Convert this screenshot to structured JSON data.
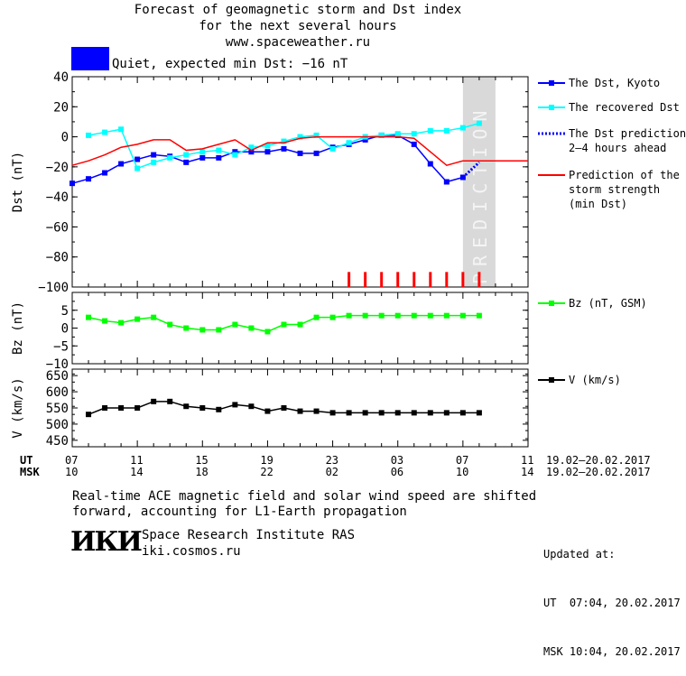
{
  "header": {
    "title_line1": "Forecast of geomagnetic storm and Dst index",
    "title_line2": "for the next several hours",
    "title_line3": "www.spaceweather.ru",
    "status_color": "#0000ff",
    "status_text": "Quiet, expected min Dst: −16 nT"
  },
  "time_axis": {
    "ut_label": "UT",
    "msk_label": "MSK",
    "ut_ticks": [
      "07",
      "11",
      "15",
      "19",
      "23",
      "03",
      "07",
      "11"
    ],
    "msk_ticks": [
      "10",
      "14",
      "18",
      "22",
      "02",
      "06",
      "10",
      "14"
    ],
    "ut_range": "19.02–20.02.2017",
    "msk_range": "19.02–20.02.2017"
  },
  "footer": {
    "note_line1": "Real-time ACE magnetic field and solar wind speed are shifted",
    "note_line2": "forward, accounting for L1-Earth propagation",
    "logo_text": "ИКИ",
    "institute": "Space Research Institute RAS",
    "website": "iki.cosmos.ru",
    "updated_label": "Updated at:",
    "updated_ut": "UT  07:04, 20.02.2017",
    "updated_msk": "MSK 10:04, 20.02.2017"
  },
  "chart_data": [
    {
      "type": "line",
      "id": "dst",
      "ylabel": "Dst (nT)",
      "ylim": [
        -100,
        40
      ],
      "yticks": [
        40,
        20,
        0,
        -20,
        -40,
        -60,
        -80,
        -100
      ],
      "xlim": [
        0,
        28
      ],
      "prediction_label": "PREDICTION",
      "prediction_start": 24,
      "series": [
        {
          "name": "The Dst, Kyoto",
          "color": "#0000ff",
          "x": [
            0,
            1,
            2,
            3,
            4,
            5,
            6,
            7,
            8,
            9,
            10,
            11,
            12,
            13,
            14,
            15,
            16,
            17,
            18,
            19,
            20,
            21,
            22,
            23,
            24
          ],
          "y": [
            -31,
            -28,
            -24,
            -18,
            -15,
            -12,
            -13,
            -17,
            -14,
            -14,
            -10,
            -10,
            -10,
            -8,
            -11,
            -11,
            -7,
            -5,
            -2,
            1,
            1,
            -5,
            -18,
            -30,
            -27
          ]
        },
        {
          "name": "The recovered Dst",
          "color": "#00ffff",
          "x": [
            1,
            2,
            3,
            4,
            5,
            6,
            7,
            8,
            9,
            10,
            11,
            12,
            13,
            14,
            15,
            16,
            17,
            18,
            19,
            20,
            21,
            22,
            23,
            24,
            25
          ],
          "y": [
            1,
            3,
            5,
            -21,
            -17,
            -14,
            -12,
            -10,
            -9,
            -12,
            -7,
            -6,
            -3,
            0,
            1,
            -8,
            -4,
            0,
            1,
            2,
            2,
            4,
            4,
            6,
            9
          ]
        },
        {
          "name": "The Dst prediction\n2–4 hours ahead",
          "color": "#0000ff",
          "x": [
            24,
            25
          ],
          "y": [
            -27,
            -17
          ]
        },
        {
          "name": "Prediction of the\nstorm strength\n(min Dst)",
          "color": "#ff0000",
          "x": [
            0,
            1,
            2,
            3,
            4,
            5,
            6,
            7,
            8,
            9,
            10,
            11,
            12,
            13,
            14,
            15,
            16,
            17,
            18,
            19,
            20,
            21,
            22,
            23,
            24,
            25,
            26,
            27,
            28
          ],
          "y": [
            -19,
            -16,
            -12,
            -7,
            -5,
            -2,
            -2,
            -9,
            -8,
            -5,
            -2,
            -9,
            -4,
            -4,
            -1,
            0,
            0,
            0,
            0,
            0,
            0,
            -1,
            -10,
            -19,
            -16,
            -16,
            -16,
            -16,
            -16
          ]
        }
      ],
      "bars": {
        "color": "#ff0000",
        "x": [
          17,
          18,
          19,
          20,
          21,
          22,
          23,
          24,
          25
        ],
        "height": -90
      }
    },
    {
      "type": "line",
      "id": "bz",
      "ylabel": "Bz (nT)",
      "ylim": [
        -10,
        10
      ],
      "yticks": [
        5,
        0,
        -5,
        -10
      ],
      "xlim": [
        0,
        28
      ],
      "series": [
        {
          "name": "Bz (nT, GSM)",
          "color": "#00ff00",
          "x": [
            1,
            2,
            3,
            4,
            5,
            6,
            7,
            8,
            9,
            10,
            11,
            12,
            13,
            14,
            15,
            16,
            17,
            18,
            19,
            20,
            21,
            22,
            23,
            24,
            25
          ],
          "y": [
            3,
            2,
            1.5,
            2.5,
            3,
            1,
            0,
            -0.5,
            -0.5,
            1,
            0,
            -1,
            1,
            1,
            3,
            3,
            3.5,
            3.5,
            3.5,
            3.5,
            3.5,
            3.5,
            3.5,
            3.5,
            3.5
          ]
        }
      ]
    },
    {
      "type": "line",
      "id": "v",
      "ylabel": "V (km/s)",
      "ylim": [
        430,
        670
      ],
      "yticks": [
        650,
        600,
        550,
        500,
        450
      ],
      "xlim": [
        0,
        28
      ],
      "series": [
        {
          "name": "V (km/s)",
          "color": "#000000",
          "x": [
            1,
            2,
            3,
            4,
            5,
            6,
            7,
            8,
            9,
            10,
            11,
            12,
            13,
            14,
            15,
            16,
            17,
            18,
            19,
            20,
            21,
            22,
            23,
            24,
            25
          ],
          "y": [
            530,
            550,
            550,
            550,
            570,
            570,
            555,
            550,
            545,
            560,
            555,
            540,
            550,
            540,
            540,
            535,
            535,
            535,
            535,
            535,
            535,
            535,
            535,
            535,
            535
          ]
        }
      ]
    }
  ]
}
